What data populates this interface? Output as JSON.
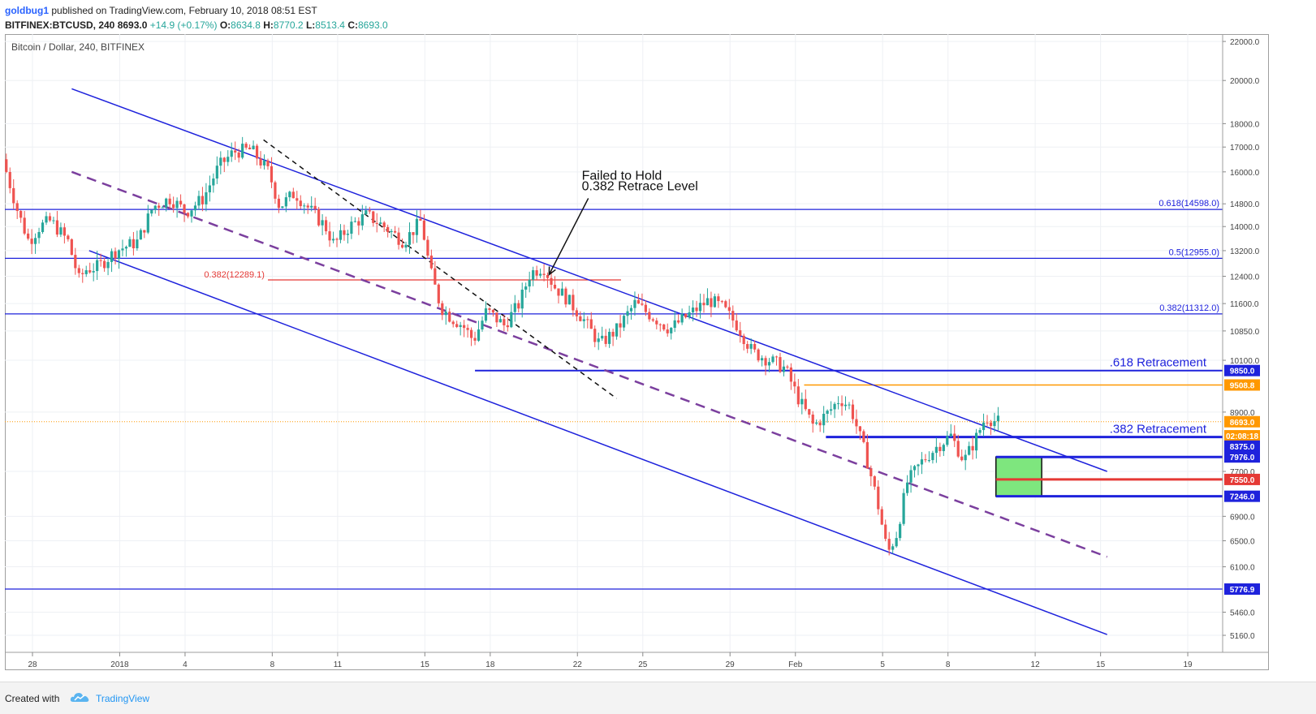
{
  "header": {
    "author": "goldbug1",
    "published_text": "published on TradingView.com, February 10, 2018 08:51 EST",
    "symbol": "BITFINEX:BTCUSD, 240",
    "last": "8693.0",
    "change": "+14.9 (+0.17%)",
    "o_label": "O:",
    "o_value": "8634.8",
    "h_label": "H:",
    "h_value": "8770.2",
    "l_label": "L:",
    "l_value": "8513.4",
    "c_label": "C:",
    "c_value": "8693.0"
  },
  "footer": {
    "created_with": "Created with",
    "brand": "TradingView"
  },
  "colors": {
    "up": "#26a69a",
    "down": "#ef5350",
    "channel": "#1e22dc",
    "fib_red": "#e53935",
    "orange": "#ff9800",
    "midline": "#7b3f9e",
    "zone_fill": "#7ee67e"
  },
  "chart_data": {
    "type": "candlestick",
    "title": "Bitcoin / Dollar, 240, BITFINEX",
    "y_scale": "log",
    "ylim": [
      4950,
      22400
    ],
    "y_ticks": [
      "22000.0",
      "20000.0",
      "18000.0",
      "17000.0",
      "16000.0",
      "14800.0",
      "14000.0",
      "13200.0",
      "12400.0",
      "11600.0",
      "10850.0",
      "10100.0",
      "8900.0",
      "7700.0",
      "6900.0",
      "6500.0",
      "6100.0",
      "5460.0",
      "5160.0"
    ],
    "x_ticks": [
      {
        "label": "28",
        "day": 0
      },
      {
        "label": "2018",
        "day": 4
      },
      {
        "label": "4",
        "day": 7
      },
      {
        "label": "8",
        "day": 11
      },
      {
        "label": "11",
        "day": 14
      },
      {
        "label": "15",
        "day": 18
      },
      {
        "label": "18",
        "day": 21
      },
      {
        "label": "22",
        "day": 25
      },
      {
        "label": "25",
        "day": 28
      },
      {
        "label": "29",
        "day": 32
      },
      {
        "label": "Feb",
        "day": 35
      },
      {
        "label": "5",
        "day": 39
      },
      {
        "label": "8",
        "day": 42
      },
      {
        "label": "12",
        "day": 46
      },
      {
        "label": "15",
        "day": 49
      },
      {
        "label": "19",
        "day": 53
      }
    ],
    "price_path": [
      {
        "day": -1.2,
        "price": 16500
      },
      {
        "day": -0.5,
        "price": 14500
      },
      {
        "day": 0,
        "price": 13500
      },
      {
        "day": 0.5,
        "price": 14000
      },
      {
        "day": 1,
        "price": 14200
      },
      {
        "day": 1.8,
        "price": 13500
      },
      {
        "day": 2.3,
        "price": 12300
      },
      {
        "day": 2.6,
        "price": 12600
      },
      {
        "day": 3.2,
        "price": 12700
      },
      {
        "day": 4,
        "price": 13200
      },
      {
        "day": 5,
        "price": 13500
      },
      {
        "day": 5.7,
        "price": 14700
      },
      {
        "day": 6.5,
        "price": 15000
      },
      {
        "day": 7.2,
        "price": 14500
      },
      {
        "day": 8,
        "price": 15000
      },
      {
        "day": 8.7,
        "price": 16200
      },
      {
        "day": 9.4,
        "price": 16800
      },
      {
        "day": 10.2,
        "price": 16900
      },
      {
        "day": 11,
        "price": 16000
      },
      {
        "day": 11.5,
        "price": 14700
      },
      {
        "day": 12.2,
        "price": 15200
      },
      {
        "day": 13,
        "price": 14500
      },
      {
        "day": 13.6,
        "price": 14000
      },
      {
        "day": 14,
        "price": 13400
      },
      {
        "day": 14.7,
        "price": 14000
      },
      {
        "day": 15.5,
        "price": 14400
      },
      {
        "day": 16.3,
        "price": 14000
      },
      {
        "day": 17.2,
        "price": 13500
      },
      {
        "day": 18,
        "price": 14200
      },
      {
        "day": 18.4,
        "price": 12600
      },
      {
        "day": 18.9,
        "price": 11500
      },
      {
        "day": 19.4,
        "price": 11200
      },
      {
        "day": 19.9,
        "price": 11000
      },
      {
        "day": 20.4,
        "price": 10600
      },
      {
        "day": 21,
        "price": 11400
      },
      {
        "day": 21.8,
        "price": 11000
      },
      {
        "day": 22.5,
        "price": 11600
      },
      {
        "day": 23,
        "price": 12500
      },
      {
        "day": 23.6,
        "price": 12700
      },
      {
        "day": 24.1,
        "price": 12100
      },
      {
        "day": 24.6,
        "price": 11800
      },
      {
        "day": 25.4,
        "price": 11200
      },
      {
        "day": 26.2,
        "price": 10500
      },
      {
        "day": 27,
        "price": 10900
      },
      {
        "day": 27.8,
        "price": 11600
      },
      {
        "day": 28.7,
        "price": 11200
      },
      {
        "day": 29.4,
        "price": 10900
      },
      {
        "day": 30.3,
        "price": 11300
      },
      {
        "day": 31.2,
        "price": 11700
      },
      {
        "day": 31.8,
        "price": 11500
      },
      {
        "day": 32.5,
        "price": 11000
      },
      {
        "day": 33.2,
        "price": 10300
      },
      {
        "day": 34,
        "price": 10100
      },
      {
        "day": 34.7,
        "price": 9900
      },
      {
        "day": 35.3,
        "price": 9200
      },
      {
        "day": 36,
        "price": 8600
      },
      {
        "day": 36.7,
        "price": 8900
      },
      {
        "day": 37.2,
        "price": 9200
      },
      {
        "day": 37.7,
        "price": 9000
      },
      {
        "day": 38.4,
        "price": 8000
      },
      {
        "day": 38.9,
        "price": 7200
      },
      {
        "day": 39.4,
        "price": 6300
      },
      {
        "day": 39.8,
        "price": 6600
      },
      {
        "day": 40.3,
        "price": 7500
      },
      {
        "day": 41,
        "price": 7900
      },
      {
        "day": 41.7,
        "price": 8200
      },
      {
        "day": 42.3,
        "price": 8400
      },
      {
        "day": 42.9,
        "price": 7900
      },
      {
        "day": 43.4,
        "price": 8300
      },
      {
        "day": 43.9,
        "price": 8800
      },
      {
        "day": 44.4,
        "price": 8690
      }
    ],
    "horizontal_levels": [
      {
        "label": "0.618(14598.0)",
        "price": 14598,
        "color": "#1e22dc"
      },
      {
        "label": "0.5(12955.0)",
        "price": 12955,
        "color": "#1e22dc"
      },
      {
        "label": "0.382(11312.0)",
        "price": 11312,
        "color": "#1e22dc"
      },
      {
        "label": "",
        "price": 5776.9,
        "color": "#1e22dc"
      }
    ],
    "fib_red": {
      "label": "0.382(12289.1)",
      "price": 12289.1,
      "from_day": 10.8,
      "to_day": 27.0
    },
    "channel_lines": [
      {
        "name": "upper",
        "points": [
          {
            "day": 1.8,
            "price": 19600
          },
          {
            "day": 49.3,
            "price": 7700
          }
        ]
      },
      {
        "name": "lower",
        "points": [
          {
            "day": 2.6,
            "price": 13200
          },
          {
            "day": 49.3,
            "price": 5170
          }
        ]
      }
    ],
    "midline": {
      "points": [
        {
          "day": 1.8,
          "price": 16000
        },
        {
          "day": 49.3,
          "price": 6250
        }
      ]
    },
    "black_dashed": {
      "points": [
        {
          "day": 10.6,
          "price": 17300
        },
        {
          "day": 26.8,
          "price": 9200
        }
      ]
    },
    "retracement_lines": [
      {
        "label": ".618 Retracement",
        "price": 9850,
        "from_day": 20.3,
        "thickness": 2
      },
      {
        "label": ".382 Retracement",
        "price": 8375,
        "from_day": 36.4,
        "thickness": 3
      }
    ],
    "orange_line": {
      "price": 9508.8,
      "from_day": 35.4
    },
    "zone_box": {
      "from_day": 44.2,
      "to_day": 46.3,
      "top": 7976,
      "bottom": 7246
    },
    "zone_lines": [
      {
        "price": 7976,
        "color": "#1e22dc"
      },
      {
        "price": 7550,
        "color": "#e53935"
      },
      {
        "price": 7246,
        "color": "#1e22dc"
      }
    ],
    "last_price": 8693,
    "price_badges": [
      {
        "text": "9850.0",
        "price": 9850,
        "bg": "#1e22dc"
      },
      {
        "text": "9508.8",
        "price": 9508.8,
        "bg": "#ff9800"
      },
      {
        "text": "8693.0",
        "price": 8693,
        "bg": "#ff9800"
      },
      {
        "text": "02:08:18",
        "price": 8400,
        "bg": "#ff9800"
      },
      {
        "text": "8375.0",
        "price": 8190,
        "bg": "#1e22dc"
      },
      {
        "text": "7976.0",
        "price": 7976,
        "bg": "#1e22dc"
      },
      {
        "text": "7550.0",
        "price": 7550,
        "bg": "#e53935"
      },
      {
        "text": "7246.0",
        "price": 7246,
        "bg": "#1e22dc"
      },
      {
        "text": "5776.9",
        "price": 5776.9,
        "bg": "#1e22dc"
      }
    ],
    "annotations": [
      {
        "text": "Failed to Hold",
        "day": 25.2,
        "price": 15700
      },
      {
        "text": "0.382 Retrace Level",
        "day": 25.2,
        "price": 15300
      },
      {
        "arrow_from_day": 25.5,
        "arrow_from_price": 15000,
        "arrow_to_day": 23.7,
        "arrow_to_price": 12450
      }
    ]
  }
}
